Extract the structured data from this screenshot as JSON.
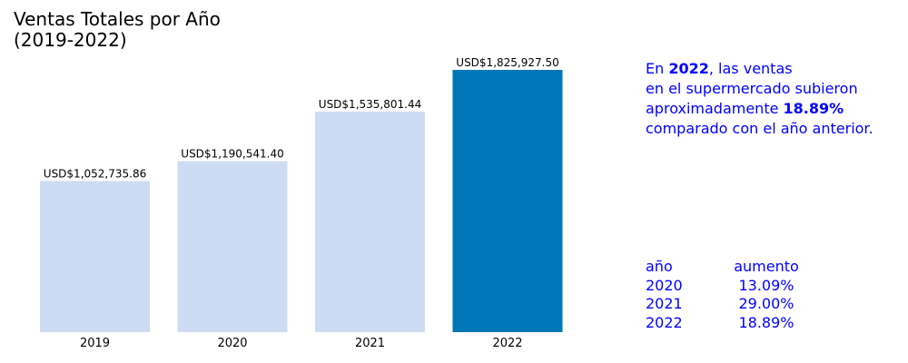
{
  "chart_data": {
    "type": "bar",
    "title": "Ventas Totales por Año\n(2019-2022)",
    "categories": [
      "2019",
      "2020",
      "2021",
      "2022"
    ],
    "values": [
      1052735.86,
      1190541.4,
      1535801.44,
      1825927.5
    ],
    "data_labels": [
      "USD$1,052,735.86",
      "USD$1,190,541.40",
      "USD$1,535,801.44",
      "USD$1,825,927.50"
    ],
    "xlabel": "",
    "ylabel": "",
    "ylim": [
      0,
      1825927.5
    ],
    "grid": false,
    "colors": [
      "#cddcf2",
      "#cddcf2",
      "#cddcf2",
      "#0077b6"
    ]
  },
  "annotation": {
    "prefix": "En ",
    "year": "2022",
    "line1_rest": ", las ventas",
    "line2": "en el supermercado subieron",
    "line3_prefix": "aproximadamente ",
    "pct": "18.89%",
    "line4": "comparado con el año anterior.",
    "color": "#0000ff"
  },
  "growth_table": {
    "headers": [
      "año",
      "aumento"
    ],
    "rows": [
      [
        "2020",
        "13.09%"
      ],
      [
        "2021",
        "29.00%"
      ],
      [
        "2022",
        "18.89%"
      ]
    ]
  }
}
